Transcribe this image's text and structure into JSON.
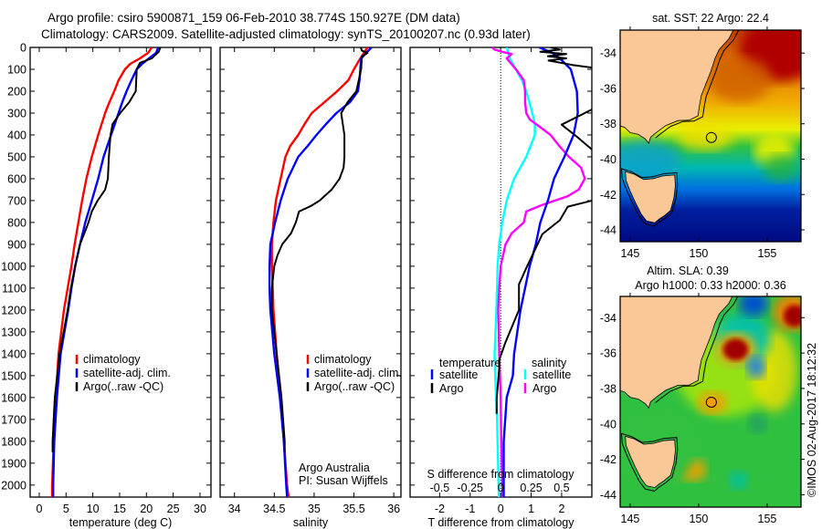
{
  "title": {
    "line1": "Argo profile: csiro 5900871_159 06-Feb-2010 38.774S 150.927E (DM data)",
    "line2": "Climatology: CARS2009. Satellite-adjusted climatology: synTS_20100207.nc (0.93d later)"
  },
  "chart_data": [
    {
      "type": "line",
      "name": "temperature-panel",
      "xlabel": "temperature (deg C)",
      "ylabel": "",
      "xlim": [
        -1.7,
        32.05
      ],
      "ylim": [
        0,
        2055
      ],
      "y_reversed": true,
      "xticks": [
        "0",
        "5",
        "10",
        "15",
        "20",
        "25",
        "30"
      ],
      "yticks": [
        "0",
        "100",
        "200",
        "300",
        "400",
        "500",
        "600",
        "700",
        "800",
        "900",
        "1000",
        "1100",
        "1200",
        "1300",
        "1400",
        "1500",
        "1600",
        "1700",
        "1800",
        "1900",
        "2000"
      ],
      "legend": {
        "placement": "center-bottom",
        "entries": [
          "climatology",
          "satellite-adj. clim.",
          "Argo(..raw -QC)"
        ]
      },
      "series": [
        {
          "name": "climatology",
          "color": "#ff0000",
          "depth": [
            0,
            25,
            50,
            75,
            100,
            150,
            200,
            250,
            300,
            400,
            500,
            600,
            700,
            800,
            900,
            1000,
            1100,
            1200,
            1400,
            1600,
            1800,
            2000,
            2055
          ],
          "values": [
            21,
            20.3,
            18.8,
            17,
            16,
            14.8,
            14,
            13.1,
            12.3,
            11,
            9.8,
            8.8,
            8,
            7.3,
            6.6,
            6,
            5.3,
            4.6,
            3.6,
            3.1,
            2.7,
            2.4,
            2.4
          ]
        },
        {
          "name": "satellite-adj. clim.",
          "color": "#0000ff",
          "depth": [
            0,
            25,
            50,
            75,
            100,
            150,
            200,
            250,
            300,
            400,
            500,
            600,
            700,
            800,
            900,
            1000,
            1100,
            1200,
            1400,
            1600,
            1800,
            2000,
            2055
          ],
          "values": [
            22.2,
            21.8,
            20.5,
            19.2,
            18.2,
            17.2,
            16.3,
            15.5,
            14.8,
            13.4,
            12,
            11,
            9.8,
            8.6,
            7.6,
            6.7,
            6,
            5.4,
            4,
            3.3,
            2.8,
            2.6,
            2.6
          ]
        },
        {
          "name": "Argo(..raw -QC)",
          "color": "#000000",
          "depth": [
            0,
            20,
            50,
            70,
            100,
            200,
            250,
            300,
            350,
            400,
            500,
            600,
            650,
            700,
            750,
            800,
            850,
            900,
            1000,
            1100,
            1200,
            1400,
            1600,
            1800,
            1850
          ],
          "values": [
            22.6,
            22.3,
            21,
            18.8,
            18.2,
            18,
            16.8,
            15.1,
            13.7,
            13.3,
            13,
            12.8,
            12.3,
            10.9,
            9.8,
            9.2,
            8.4,
            7.6,
            6.7,
            5.9,
            5.3,
            3.8,
            2.9,
            2.5,
            2.5
          ]
        }
      ]
    },
    {
      "type": "line",
      "name": "salinity-panel",
      "xlabel": "salinity",
      "xlim": [
        33.82,
        36.09
      ],
      "ylim": [
        0,
        2055
      ],
      "y_reversed": true,
      "xticks": [
        "34",
        "34.5",
        "35",
        "35.5",
        "36"
      ],
      "legend": {
        "placement": "center-bottom",
        "entries": [
          "climatology",
          "satellite-adj. clim.",
          "Argo(..raw -QC)"
        ]
      },
      "annotation": [
        "Argo Australia",
        "PI: Susan Wijffels"
      ],
      "series": [
        {
          "name": "climatology",
          "color": "#ff0000",
          "depth": [
            0,
            50,
            100,
            150,
            200,
            250,
            300,
            350,
            400,
            450,
            500,
            600,
            700,
            800,
            900,
            1000,
            1100,
            1200,
            1400,
            1600,
            1800,
            2000,
            2055
          ],
          "values": [
            35.67,
            35.58,
            35.5,
            35.43,
            35.29,
            35.13,
            34.97,
            34.88,
            34.8,
            34.7,
            34.64,
            34.58,
            34.52,
            34.49,
            34.47,
            34.47,
            34.48,
            34.49,
            34.53,
            34.58,
            34.62,
            34.66,
            34.68
          ]
        },
        {
          "name": "satellite-adj. clim.",
          "color": "#0000ff",
          "depth": [
            0,
            50,
            100,
            150,
            200,
            250,
            300,
            350,
            400,
            450,
            500,
            600,
            700,
            800,
            900,
            1000,
            1100,
            1200,
            1400,
            1600,
            1800,
            2000,
            2055
          ],
          "values": [
            35.72,
            35.59,
            35.58,
            35.57,
            35.55,
            35.45,
            35.28,
            35.15,
            35.03,
            34.92,
            34.8,
            34.67,
            34.58,
            34.51,
            34.45,
            34.44,
            34.44,
            34.45,
            34.5,
            34.57,
            34.62,
            34.65,
            34.66
          ]
        },
        {
          "name": "Argo(..raw -QC)",
          "color": "#000000",
          "depth": [
            0,
            5,
            15,
            25,
            40,
            100,
            200,
            250,
            300,
            350,
            400,
            500,
            550,
            600,
            650,
            700,
            725,
            750,
            800,
            850,
            900,
            950,
            1000,
            1100,
            1200,
            1400,
            1600,
            1800,
            1850
          ],
          "values": [
            35.59,
            35.59,
            35.6,
            35.67,
            35.6,
            35.59,
            35.53,
            35.42,
            35.34,
            35.36,
            35.38,
            35.38,
            35.37,
            35.32,
            35.22,
            35.07,
            34.96,
            34.81,
            34.77,
            34.71,
            34.6,
            34.54,
            34.5,
            34.47,
            34.47,
            34.53,
            34.59,
            34.63,
            34.63
          ]
        }
      ]
    },
    {
      "type": "line",
      "name": "difference-panel",
      "xlabel": "T difference from climatology",
      "x2label": "S difference from climatology",
      "xlim": [
        -2.97,
        2.99
      ],
      "x2lim": [
        -0.7425,
        0.7475
      ],
      "ylim": [
        0,
        2055
      ],
      "y_reversed": true,
      "xticks": [
        "-2",
        "-1",
        "0",
        "1",
        "2"
      ],
      "x2ticks": [
        "-0.5",
        "-0.25",
        "0",
        "0.25",
        "0.5"
      ],
      "zero_line": true,
      "legend": {
        "placement": "center-bottom",
        "temperature_heading": "temperature",
        "salinity_heading": "salinity",
        "entries": [
          "satellite",
          "Argo",
          "satellite",
          "Argo"
        ]
      },
      "series": [
        {
          "name": "T satellite",
          "axis": "T",
          "color": "#0000ff",
          "depth": [
            0,
            25,
            50,
            100,
            200,
            300,
            400,
            500,
            600,
            700,
            800,
            900,
            1000,
            1100,
            1200,
            1400,
            1500,
            1600,
            1700,
            1800,
            2000,
            2055
          ],
          "values": [
            1.27,
            1.7,
            1.94,
            2.3,
            2.5,
            2.53,
            2.39,
            2.09,
            1.75,
            1.55,
            1.3,
            1.15,
            0.95,
            0.8,
            0.65,
            0.44,
            0.4,
            0.2,
            0.15,
            0.1,
            0.1,
            0.1
          ]
        },
        {
          "name": "T Argo",
          "axis": "T",
          "color": "#000000",
          "depth": [
            0,
            10,
            20,
            30,
            40,
            50,
            60,
            80,
            100,
            150,
            283,
            353,
            408,
            467,
            550,
            650,
            700,
            728,
            790,
            853,
            1006,
            1083,
            1200,
            1350,
            1430,
            1470,
            1605,
            1675
          ],
          "values": [
            1.64,
            1.94,
            1.3,
            2.15,
            1.55,
            2.15,
            1.57,
            2.35,
            3.4,
            3.6,
            3.0,
            2.0,
            2.5,
            3.0,
            3.5,
            3.4,
            3.0,
            2.2,
            1.94,
            1.37,
            0.85,
            0.6,
            0.6,
            0.15,
            -0.05,
            -0.05,
            -0.13,
            -0.13
          ]
        },
        {
          "name": "S satellite",
          "axis": "S",
          "color": "#00ffff",
          "depth": [
            0,
            20,
            50,
            100,
            150,
            200,
            300,
            350,
            400,
            500,
            600,
            700,
            800,
            900,
            1000,
            1100,
            1200,
            1400,
            1500,
            1700,
            2000,
            2055
          ],
          "values": [
            0.05,
            0.06,
            0.075,
            0.125,
            0.175,
            0.21,
            0.26,
            0.28,
            0.28,
            0.21,
            0.11,
            0.05,
            0.013,
            -0.012,
            -0.025,
            -0.03,
            -0.035,
            -0.05,
            -0.045,
            -0.03,
            -0.017,
            -0.015
          ]
        },
        {
          "name": "S Argo",
          "axis": "S",
          "color": "#ff00ff",
          "depth": [
            0,
            10,
            20,
            30,
            50,
            100,
            150,
            200,
            250,
            300,
            330,
            350,
            400,
            450,
            500,
            550,
            600,
            650,
            680,
            720,
            750,
            800,
            850,
            900,
            1000,
            1100,
            1200,
            1400,
            1600,
            1800,
            2000,
            2055
          ],
          "values": [
            -0.07,
            -0.05,
            0.013,
            0.09,
            0.05,
            0.125,
            0.19,
            0.2,
            0.2,
            0.21,
            0.24,
            0.29,
            0.41,
            0.48,
            0.56,
            0.66,
            0.69,
            0.64,
            0.55,
            0.34,
            0.21,
            0.19,
            0.09,
            0.04,
            0,
            -0.012,
            -0.02,
            -0.012,
            0,
            0.005,
            0.013,
            0.013
          ]
        }
      ]
    }
  ],
  "maps": [
    {
      "name": "sst-map",
      "title_lines": [
        "sat. SST: 22 Argo: 22.4"
      ],
      "lon_ticks": [
        "145",
        "150",
        "155"
      ],
      "lat_ticks": [
        "-34",
        "-36",
        "-38",
        "-40",
        "-42",
        "-44"
      ],
      "lon_range": [
        144.27,
        157.47
      ],
      "lat_range": [
        -32.7,
        -44.67
      ],
      "argo_position": [
        150.927,
        -38.774
      ],
      "marker_fill": "none"
    },
    {
      "name": "sla-map",
      "title_lines": [
        "Altim. SLA: 0.39",
        "Argo h1000: 0.33 h2000: 0.36"
      ],
      "lon_ticks": [
        "145",
        "150",
        "155"
      ],
      "lat_ticks": [
        "-34",
        "-36",
        "-38",
        "-40",
        "-42",
        "-44"
      ],
      "lon_range": [
        144.27,
        157.47
      ],
      "lat_range": [
        -32.8,
        -44.7
      ],
      "argo_position": [
        150.927,
        -38.774
      ],
      "marker_fill": "#f5a000"
    }
  ],
  "coast": {
    "land_color": "#f9c896",
    "mainland": [
      [
        152.6,
        -32.6
      ],
      [
        152.2,
        -33.2
      ],
      [
        151.5,
        -33.8
      ],
      [
        151.2,
        -34.3
      ],
      [
        150.9,
        -35.0
      ],
      [
        150.5,
        -35.8
      ],
      [
        150.2,
        -36.4
      ],
      [
        150.05,
        -37.0
      ],
      [
        149.95,
        -37.55
      ],
      [
        149.3,
        -37.8
      ],
      [
        148.5,
        -37.82
      ],
      [
        147.6,
        -38.1
      ],
      [
        146.9,
        -38.5
      ],
      [
        146.5,
        -38.75
      ],
      [
        146.35,
        -39.1
      ],
      [
        146.1,
        -38.85
      ],
      [
        145.6,
        -38.6
      ],
      [
        145.0,
        -38.5
      ],
      [
        144.6,
        -38.2
      ],
      [
        144.2,
        -38.1
      ],
      [
        144.2,
        -32.6
      ]
    ],
    "tasmania": [
      [
        144.65,
        -40.7
      ],
      [
        145.3,
        -40.85
      ],
      [
        146.0,
        -41.15
      ],
      [
        146.7,
        -41.1
      ],
      [
        147.4,
        -40.95
      ],
      [
        148.25,
        -40.9
      ],
      [
        148.3,
        -41.5
      ],
      [
        148.2,
        -42.2
      ],
      [
        147.95,
        -42.9
      ],
      [
        147.5,
        -43.2
      ],
      [
        147.1,
        -43.4
      ],
      [
        146.8,
        -43.6
      ],
      [
        146.2,
        -43.5
      ],
      [
        145.8,
        -43.1
      ],
      [
        145.35,
        -42.4
      ],
      [
        145.0,
        -41.8
      ],
      [
        144.7,
        -41.2
      ]
    ]
  },
  "credit": "©IMOS 02-Aug-2017 18:12:32"
}
